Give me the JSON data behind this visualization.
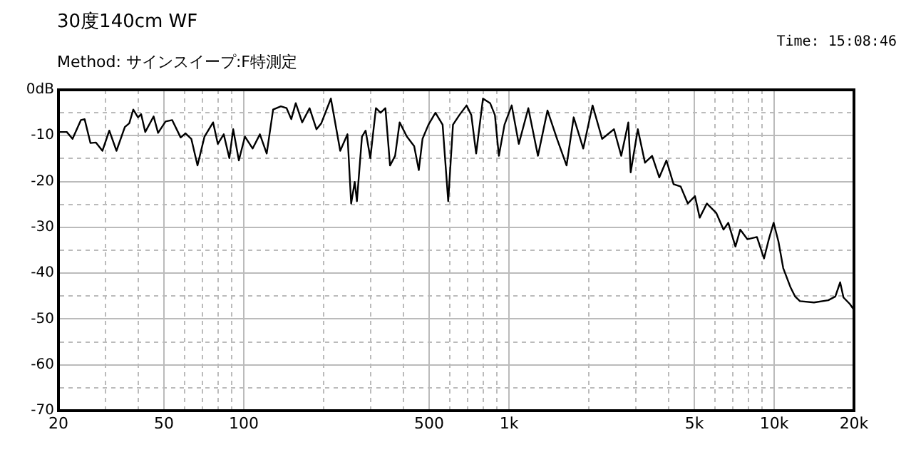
{
  "chart_data": {
    "type": "line",
    "title": "30度140cm WF",
    "subtitle": "Method:  サインスイープ:F特測定",
    "annotations": [
      "Time: 15:08:46"
    ],
    "log": "x",
    "grid": true,
    "legend": false,
    "marker": "none",
    "line_style": "solid",
    "xlim": [
      20,
      20000
    ],
    "ylim": [
      -70,
      0
    ],
    "xticks": [
      20,
      {
        "value": 30,
        "label": null
      },
      {
        "value": 40,
        "label": null
      },
      50,
      {
        "value": 60,
        "label": null
      },
      {
        "value": 70,
        "label": null
      },
      {
        "value": 80,
        "label": null
      },
      {
        "value": 90,
        "label": null
      },
      100,
      {
        "value": 200,
        "label": null
      },
      {
        "value": 300,
        "label": null
      },
      {
        "value": 400,
        "label": null
      },
      500,
      {
        "value": 600,
        "label": null
      },
      {
        "value": 700,
        "label": null
      },
      {
        "value": 800,
        "label": null
      },
      {
        "value": 900,
        "label": null
      },
      {
        "value": 1000,
        "label": "1k"
      },
      {
        "value": 2000,
        "label": null
      },
      {
        "value": 3000,
        "label": null
      },
      {
        "value": 4000,
        "label": null
      },
      {
        "value": 5000,
        "label": "5k"
      },
      {
        "value": 6000,
        "label": null
      },
      {
        "value": 7000,
        "label": null
      },
      {
        "value": 8000,
        "label": null
      },
      {
        "value": 9000,
        "label": null
      },
      {
        "value": 10000,
        "label": "10k"
      },
      {
        "value": 20000,
        "label": "20k"
      }
    ],
    "yticks": [
      {
        "value": 0,
        "label": "0dB"
      },
      {
        "value": -5,
        "label": null
      },
      -10,
      {
        "value": -15,
        "label": null
      },
      -20,
      {
        "value": -25,
        "label": null
      },
      -30,
      {
        "value": -35,
        "label": null
      },
      -40,
      {
        "value": -45,
        "label": null
      },
      -50,
      {
        "value": -55,
        "label": null
      },
      -60,
      {
        "value": -65,
        "label": null
      },
      -70
    ],
    "x": [
      20,
      21.5,
      22.6,
      24.3,
      25.1,
      26.4,
      27.7,
      29.3,
      31.1,
      33.1,
      35.6,
      37,
      38.3,
      39.9,
      41,
      42.5,
      45.7,
      47.5,
      50.7,
      53.7,
      57.8,
      60.3,
      63.4,
      66.9,
      71.1,
      76.6,
      79.8,
      84,
      88.2,
      91.2,
      95.8,
      101,
      108,
      115,
      122,
      129,
      138,
      145,
      151,
      157,
      166,
      177,
      188,
      196,
      213,
      231,
      246,
      254,
      262,
      267,
      279,
      288,
      300,
      315,
      328,
      342,
      356,
      372,
      387,
      412,
      439,
      457,
      472,
      497,
      528,
      562,
      590,
      615,
      650,
      692,
      721,
      752,
      798,
      849,
      885,
      916,
      962,
      1024,
      1089,
      1183,
      1286,
      1397,
      1518,
      1649,
      1754,
      1906,
      2067,
      2245,
      2489,
      2651,
      2819,
      2877,
      3061,
      3258,
      3466,
      3689,
      3925,
      4176,
      4441,
      4726,
      5029,
      5238,
      5573,
      6055,
      6442,
      6715,
      7145,
      7448,
      7925,
      8610,
      9160,
      9550,
      9956,
      10380,
      10820,
      11510,
      12000,
      12510,
      14130,
      16000,
      17010,
      17740,
      18260,
      19280,
      20000
    ],
    "series": [
      {
        "color": "#000000",
        "values": [
          -9.2,
          -9.2,
          -10.7,
          -6.6,
          -6.4,
          -11.6,
          -11.5,
          -13.3,
          -8.9,
          -13.3,
          -8.1,
          -7.3,
          -4.3,
          -6,
          -5.3,
          -9.2,
          -5.8,
          -9.4,
          -6.9,
          -6.6,
          -10.4,
          -9.5,
          -10.7,
          -16.5,
          -10.2,
          -7.1,
          -11.8,
          -9.7,
          -14.9,
          -8.6,
          -15.4,
          -10.2,
          -12.8,
          -9.7,
          -13.9,
          -4.3,
          -3.6,
          -4,
          -6.4,
          -2.9,
          -7.1,
          -4,
          -8.6,
          -7.3,
          -1.9,
          -13.3,
          -9.7,
          -24.8,
          -20.1,
          -24.3,
          -10.2,
          -8.9,
          -14.9,
          -4,
          -5,
          -4,
          -16.5,
          -14.4,
          -7.1,
          -10.2,
          -12.3,
          -17.5,
          -10.7,
          -7.6,
          -5,
          -7.6,
          -24.3,
          -7.6,
          -5.5,
          -3.4,
          -5.5,
          -13.9,
          -1.9,
          -2.9,
          -5.5,
          -14.4,
          -7.6,
          -3.4,
          -11.8,
          -4,
          -14.4,
          -4.5,
          -10.7,
          -16.5,
          -6,
          -12.8,
          -3.4,
          -10.7,
          -8.6,
          -14.4,
          -7.1,
          -18,
          -8.6,
          -15.9,
          -14.4,
          -19.1,
          -15.4,
          -20.6,
          -21.1,
          -24.8,
          -23.2,
          -27.9,
          -24.8,
          -26.9,
          -30.5,
          -29,
          -34.2,
          -30.5,
          -32.6,
          -32.1,
          -36.8,
          -32.6,
          -29,
          -33.1,
          -38.9,
          -43,
          -45.1,
          -46.1,
          -46.4,
          -45.9,
          -45.1,
          -42,
          -45.3,
          -46.7,
          -48
        ]
      }
    ]
  }
}
